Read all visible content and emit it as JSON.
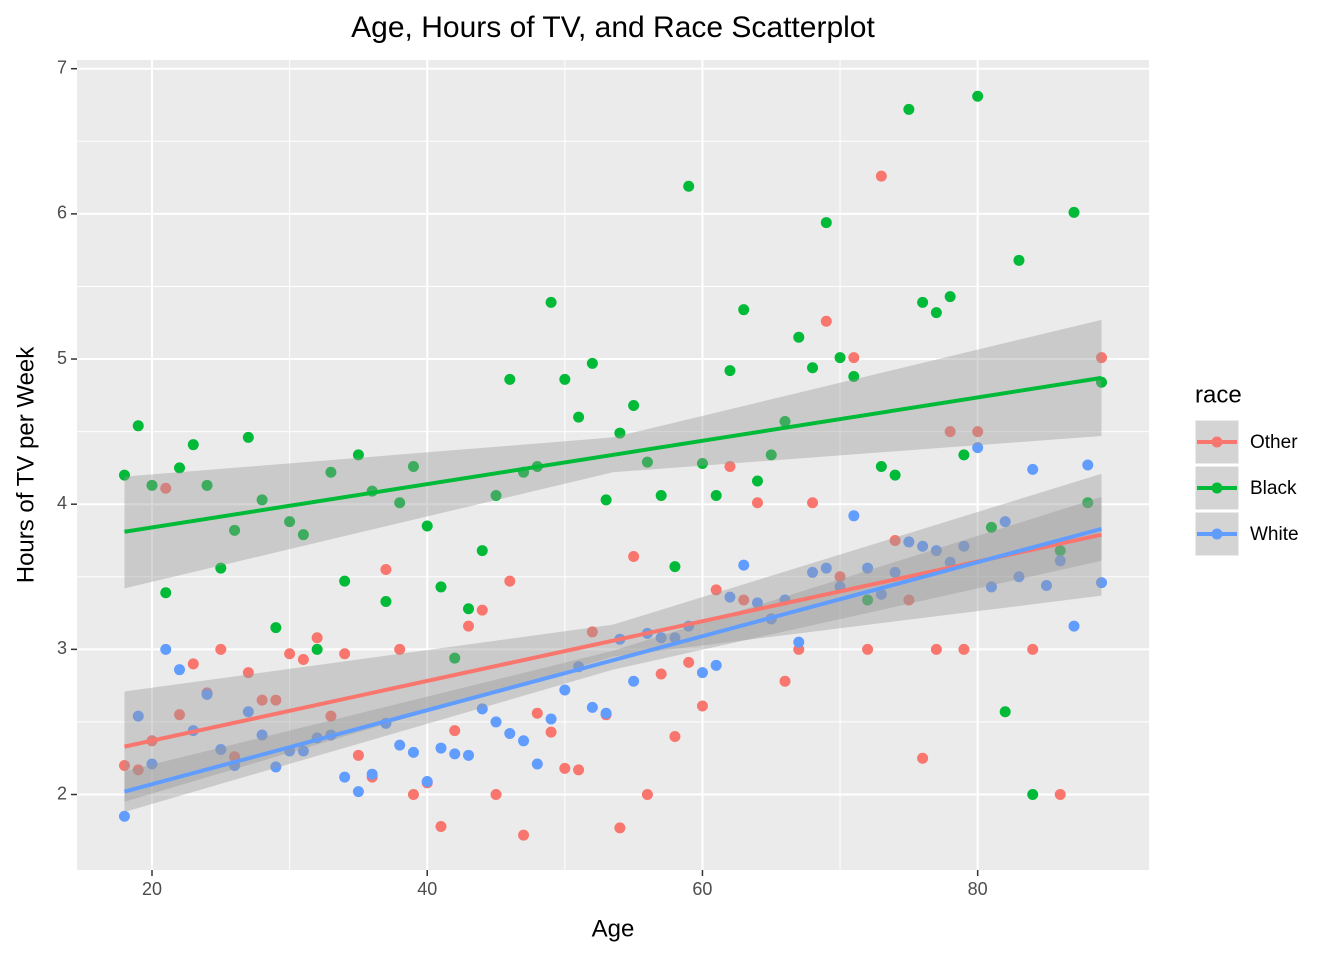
{
  "chart_data": {
    "type": "scatter",
    "title": "Age, Hours of TV, and Race Scatterplot",
    "x_label": "Age",
    "y_label": "Hours of TV per Week",
    "legend_title": "race",
    "legend_position": "right",
    "grid": true,
    "xlim": [
      14.55,
      92.45
    ],
    "ylim": [
      1.48,
      7.06
    ],
    "xticks": [
      20,
      40,
      60,
      80
    ],
    "yticks": [
      2,
      3,
      4,
      5,
      6,
      7
    ],
    "series": [
      {
        "name": "Other",
        "color": "#F8766D",
        "x": [
          18,
          19,
          20,
          21,
          22,
          23,
          24,
          25,
          26,
          27,
          28,
          29,
          30,
          31,
          32,
          33,
          34,
          35,
          36,
          37,
          38,
          39,
          40,
          41,
          42,
          43,
          44,
          45,
          46,
          47,
          48,
          49,
          50,
          51,
          52,
          53,
          54,
          55,
          56,
          57,
          58,
          59,
          60,
          61,
          62,
          63,
          64,
          65,
          66,
          67,
          68,
          69,
          70,
          71,
          72,
          73,
          74,
          75,
          76,
          77,
          78,
          79,
          80,
          84,
          86,
          89
        ],
        "values": [
          2.2,
          2.17,
          2.37,
          4.11,
          2.55,
          2.9,
          2.7,
          3.0,
          2.26,
          2.84,
          2.65,
          2.65,
          2.97,
          2.93,
          3.08,
          2.54,
          2.97,
          2.27,
          2.12,
          3.55,
          3.0,
          2.0,
          2.08,
          1.78,
          2.44,
          3.16,
          3.27,
          2.0,
          3.47,
          1.72,
          2.56,
          2.43,
          2.18,
          2.17,
          3.12,
          2.55,
          1.77,
          3.64,
          2.0,
          2.83,
          2.4,
          2.91,
          2.61,
          3.41,
          4.26,
          3.34,
          4.01,
          3.21,
          2.78,
          3.0,
          4.01,
          5.26,
          3.5,
          5.01,
          3.0,
          6.26,
          3.75,
          3.34,
          2.25,
          3.0,
          4.5,
          3.0,
          4.5,
          3.0,
          2.0,
          5.01
        ],
        "fit": {
          "x": [
            18,
            89
          ],
          "values": [
            2.33,
            3.79
          ]
        },
        "band": {
          "x": [
            18,
            53.5,
            89
          ],
          "lower": [
            1.95,
            2.95,
            3.37
          ],
          "upper": [
            2.71,
            3.17,
            4.21
          ]
        }
      },
      {
        "name": "Black",
        "color": "#00BA38",
        "x": [
          18,
          19,
          20,
          21,
          22,
          23,
          24,
          25,
          26,
          27,
          28,
          29,
          30,
          31,
          32,
          33,
          34,
          35,
          36,
          37,
          38,
          39,
          40,
          41,
          42,
          43,
          44,
          45,
          46,
          47,
          48,
          49,
          50,
          51,
          52,
          53,
          54,
          55,
          56,
          57,
          58,
          59,
          60,
          61,
          62,
          63,
          64,
          65,
          66,
          67,
          68,
          69,
          70,
          71,
          72,
          73,
          74,
          75,
          76,
          77,
          78,
          79,
          80,
          81,
          82,
          83,
          84,
          86,
          87,
          88,
          89
        ],
        "values": [
          4.2,
          4.54,
          4.13,
          3.39,
          4.25,
          4.41,
          4.13,
          3.56,
          3.82,
          4.46,
          4.03,
          3.15,
          3.88,
          3.79,
          3.0,
          4.22,
          3.47,
          4.34,
          4.09,
          3.33,
          4.01,
          4.26,
          3.85,
          3.43,
          2.94,
          3.28,
          3.68,
          4.06,
          4.86,
          4.22,
          4.26,
          5.39,
          4.86,
          4.6,
          4.97,
          4.03,
          4.49,
          4.68,
          4.29,
          4.06,
          3.57,
          6.19,
          4.28,
          4.06,
          4.92,
          5.34,
          4.16,
          4.34,
          4.57,
          5.15,
          4.94,
          5.94,
          5.01,
          4.88,
          3.34,
          4.26,
          4.2,
          6.72,
          5.39,
          5.32,
          5.43,
          4.34,
          6.81,
          3.84,
          2.57,
          5.68,
          2.0,
          3.68,
          6.01,
          4.01,
          4.84
        ],
        "fit": {
          "x": [
            18,
            89
          ],
          "values": [
            3.81,
            4.87
          ]
        },
        "band": {
          "x": [
            18,
            53.5,
            89
          ],
          "lower": [
            3.42,
            4.22,
            4.47
          ],
          "upper": [
            4.19,
            4.46,
            5.27
          ]
        }
      },
      {
        "name": "White",
        "color": "#619CFF",
        "x": [
          18,
          19,
          20,
          21,
          22,
          23,
          24,
          25,
          26,
          27,
          28,
          29,
          30,
          31,
          32,
          33,
          34,
          35,
          36,
          37,
          38,
          39,
          40,
          41,
          42,
          43,
          44,
          45,
          46,
          47,
          48,
          49,
          50,
          51,
          52,
          53,
          54,
          55,
          56,
          57,
          58,
          59,
          60,
          61,
          62,
          63,
          64,
          65,
          66,
          67,
          68,
          69,
          70,
          71,
          72,
          73,
          74,
          75,
          76,
          77,
          78,
          79,
          80,
          81,
          82,
          83,
          84,
          85,
          86,
          87,
          88,
          89
        ],
        "values": [
          1.85,
          2.54,
          2.21,
          3.0,
          2.86,
          2.44,
          2.69,
          2.31,
          2.2,
          2.57,
          2.41,
          2.19,
          2.3,
          2.3,
          2.39,
          2.41,
          2.12,
          2.02,
          2.14,
          2.49,
          2.34,
          2.29,
          2.09,
          2.32,
          2.28,
          2.27,
          2.59,
          2.5,
          2.42,
          2.37,
          2.21,
          2.52,
          2.72,
          2.88,
          2.6,
          2.56,
          3.07,
          2.78,
          3.11,
          3.08,
          3.08,
          3.16,
          2.84,
          2.89,
          3.36,
          3.58,
          3.32,
          3.21,
          3.34,
          3.05,
          3.53,
          3.56,
          3.43,
          3.92,
          3.56,
          3.38,
          3.53,
          3.74,
          3.71,
          3.68,
          3.6,
          3.71,
          4.39,
          3.43,
          3.88,
          3.5,
          4.24,
          3.44,
          3.61,
          3.16,
          4.27,
          3.46
        ],
        "fit": {
          "x": [
            18,
            89
          ],
          "values": [
            2.02,
            3.83
          ]
        },
        "band": {
          "x": [
            18,
            53.5,
            89
          ],
          "lower": [
            1.88,
            2.86,
            3.61
          ],
          "upper": [
            2.16,
            2.99,
            4.05
          ]
        }
      }
    ]
  }
}
